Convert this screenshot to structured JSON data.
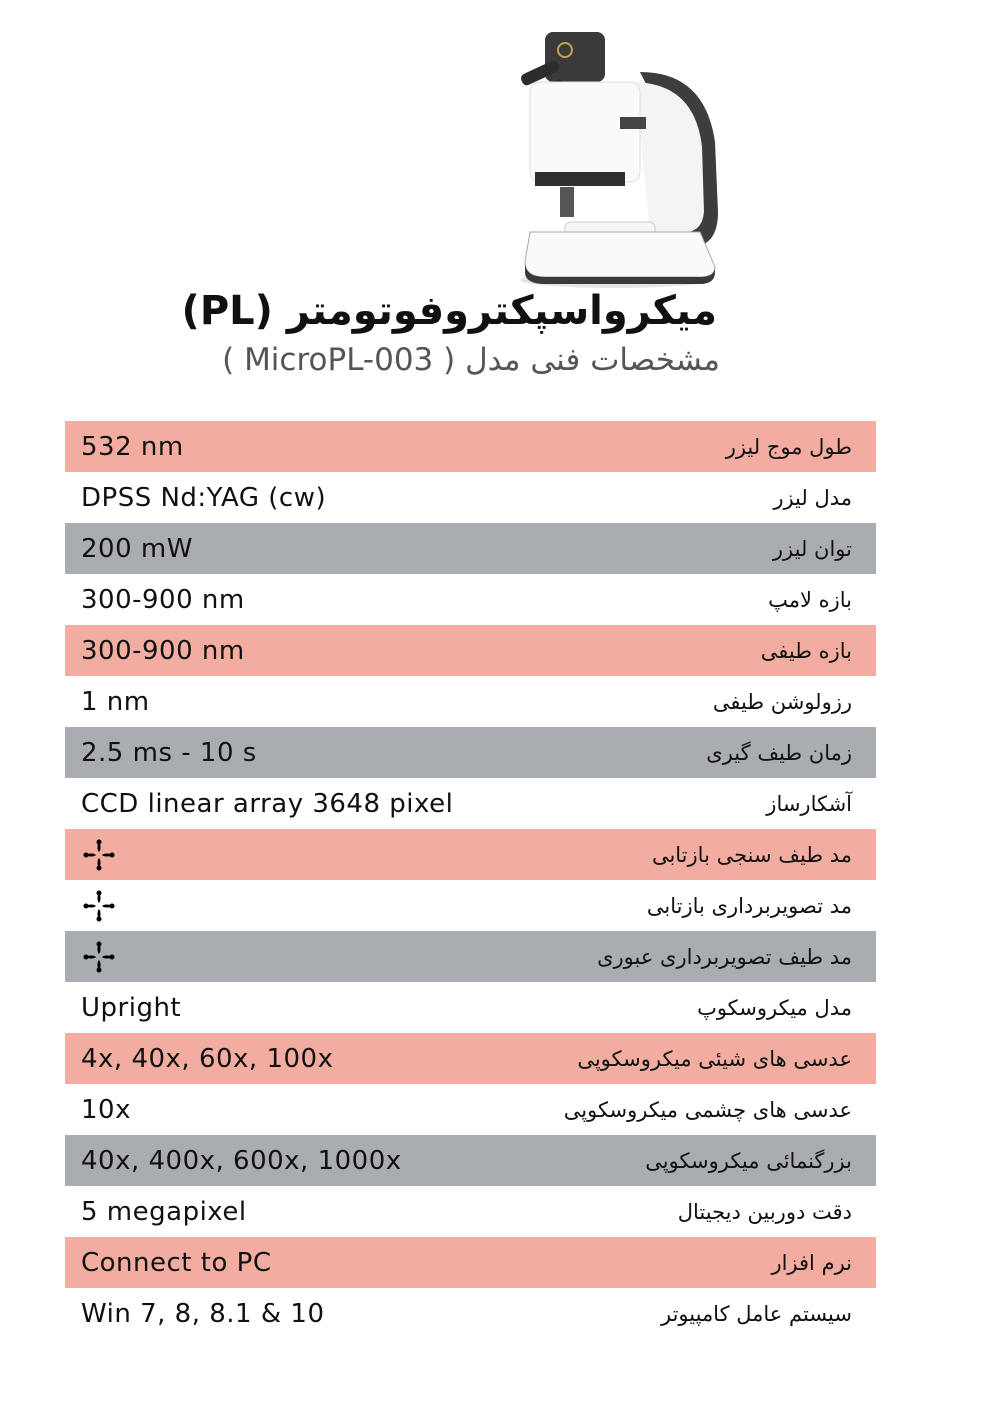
{
  "header": {
    "title": "میکرواسپکتروفوتومتر (PL)",
    "subtitle": "مشخصات فنی  مدل ( MicroPL-003 )"
  },
  "colors": {
    "pink": "#f2ada0",
    "gray": "#a9adb2",
    "white": "#ffffff"
  },
  "specs": [
    {
      "label": "طول موج لیزر",
      "value": "532 nm",
      "bg": "pink"
    },
    {
      "label": "مدل لیزر",
      "value": "DPSS Nd:YAG (cw)",
      "bg": "white"
    },
    {
      "label": "توان لیزر",
      "value": "200 mW",
      "bg": "gray"
    },
    {
      "label": "بازه لامپ",
      "value": "300-900 nm",
      "bg": "white"
    },
    {
      "label": "بازه طیفی",
      "value": "300-900 nm",
      "bg": "pink"
    },
    {
      "label": "رزولوشن طیفی",
      "value": "1 nm",
      "bg": "white"
    },
    {
      "label": "زمان طیف گیری",
      "value": "2.5 ms - 10 s",
      "bg": "gray"
    },
    {
      "label": "آشکارساز",
      "value": "CCD linear array 3648 pixel",
      "bg": "white"
    },
    {
      "label": "مد  طیف سنجی بازتابی",
      "value": null,
      "icon": "four-petal-check-icon",
      "bg": "pink"
    },
    {
      "label": "مد  تصویربرداری بازتابی",
      "value": null,
      "icon": "four-petal-check-icon",
      "bg": "white"
    },
    {
      "label": "مد  طیف تصویربرداری عبوری",
      "value": null,
      "icon": "four-petal-check-icon",
      "bg": "gray"
    },
    {
      "label": "مدل میکروسکوپ",
      "value": "Upright",
      "bg": "white"
    },
    {
      "label": "عدسی های شیئی میکروسکوپی",
      "value": "4x, 40x, 60x, 100x",
      "bg": "pink"
    },
    {
      "label": "عدسی های چشمی میکروسکوپی",
      "value": "10x",
      "bg": "white"
    },
    {
      "label": "بزرگنمائی میکروسکوپی",
      "value": "40x, 400x, 600x, 1000x",
      "bg": "gray"
    },
    {
      "label": "دقت دوربین دیجیتال",
      "value": "5 megapixel",
      "bg": "white"
    },
    {
      "label": "نرم افزار",
      "value": "Connect to PC",
      "bg": "pink"
    },
    {
      "label": "سیستم عامل کامپیوتر",
      "value": "Win 7, 8, 8.1 & 10",
      "bg": "white"
    }
  ]
}
